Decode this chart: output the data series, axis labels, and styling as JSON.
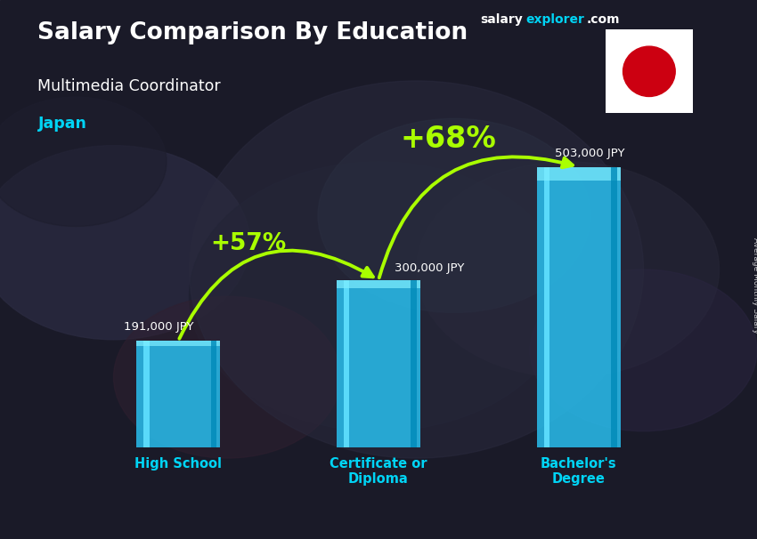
{
  "title_salary": "Salary Comparison By Education",
  "subtitle": "Multimedia Coordinator",
  "country": "Japan",
  "ylabel": "Average Monthly Salary",
  "categories": [
    "High School",
    "Certificate or\nDiploma",
    "Bachelor's\nDegree"
  ],
  "values": [
    191000,
    300000,
    503000
  ],
  "value_labels": [
    "191,000 JPY",
    "300,000 JPY",
    "503,000 JPY"
  ],
  "pct_labels": [
    "+57%",
    "+68%"
  ],
  "bar_color_face": "#29c5f6",
  "bar_color_edge": "#00a8d6",
  "bar_alpha": 0.82,
  "background_color": "#1a1a2e",
  "text_color_white": "#ffffff",
  "text_color_cyan": "#00d4f5",
  "text_color_green": "#aaff00",
  "arrow_color": "#aaff00",
  "brand_salary_color": "#ffffff",
  "brand_explorer_color": "#00d4f5",
  "fig_width": 8.5,
  "fig_height": 6.06,
  "dpi": 100
}
